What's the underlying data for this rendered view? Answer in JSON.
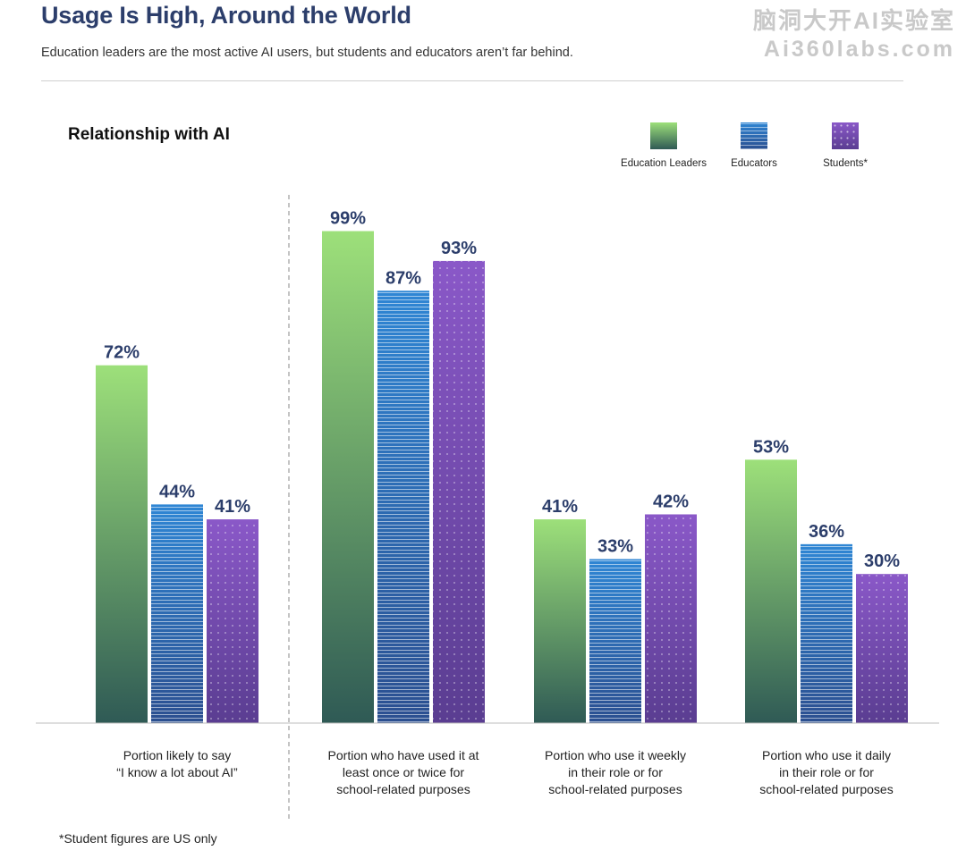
{
  "header": {
    "title": "Usage Is High, Around the World",
    "subtitle": "Education leaders are the most active AI users, but students and educators aren’t far behind."
  },
  "watermark": {
    "line1": "脑洞大开AI实验室",
    "line2": "Ai360labs.com"
  },
  "footnote": "*Student figures are US only",
  "colors": {
    "leaders_top": "#9de07a",
    "leaders_bottom": "#2f5a55",
    "educators_top": "#2f86d4",
    "educators_bottom": "#2b4f90",
    "students_top": "#8a58c8",
    "students_bottom": "#5a3d91",
    "value_label": "#2c3e6b"
  },
  "chart_data": {
    "type": "bar",
    "title": "Relationship with AI",
    "xlabel": "",
    "ylabel": "",
    "unit": "%",
    "ylim": [
      0,
      100
    ],
    "grid": false,
    "legend_position": "top-right",
    "categories": [
      [
        "Portion likely to say",
        "“I know a lot about AI”"
      ],
      [
        "Portion who have used it at",
        "least once or twice for",
        "school-related purposes"
      ],
      [
        "Portion who use it weekly",
        "in their role or for",
        "school-related purposes"
      ],
      [
        "Portion who use it daily",
        "in their role or for",
        "school-related purposes"
      ]
    ],
    "series": [
      {
        "name": "Education Leaders",
        "values": [
          72,
          99,
          41,
          53
        ]
      },
      {
        "name": "Educators",
        "values": [
          44,
          87,
          33,
          36
        ]
      },
      {
        "name": "Students*",
        "values": [
          41,
          93,
          42,
          30
        ]
      }
    ]
  }
}
